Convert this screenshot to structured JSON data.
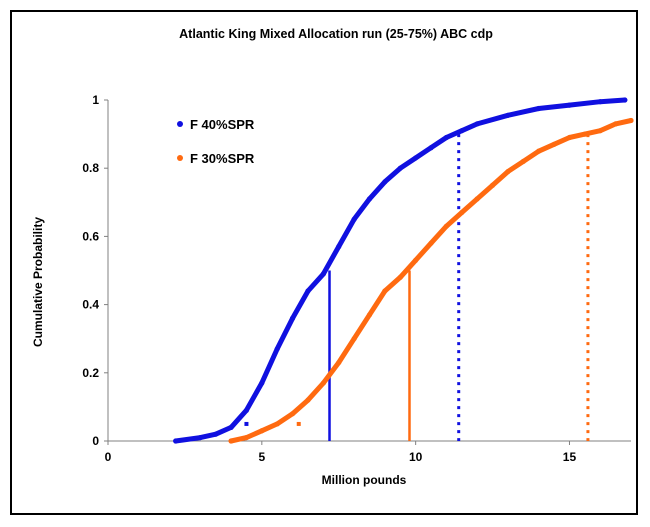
{
  "chart_data": {
    "type": "line",
    "title": "Atlantic King Mixed Allocation run (25-75%) ABC cdp",
    "xlabel": "Million pounds",
    "ylabel": "Cumulative Probability",
    "xlim": [
      0,
      17
    ],
    "ylim": [
      0,
      1
    ],
    "xticks": [
      0,
      5,
      10,
      15
    ],
    "yticks": [
      0,
      0.2,
      0.4,
      0.6,
      0.8,
      1
    ],
    "grid": false,
    "legend_position": "top-left",
    "series": [
      {
        "name": "F 40%SPR",
        "color": "#1010e0",
        "marker": "diamond",
        "x": [
          2.2,
          3.0,
          3.5,
          4.0,
          4.5,
          5.0,
          5.5,
          6.0,
          6.5,
          7.0,
          7.5,
          8.0,
          8.5,
          9.0,
          9.5,
          10.0,
          10.5,
          11.0,
          11.5,
          12.0,
          13.0,
          14.0,
          15.0,
          16.0,
          16.8
        ],
        "y": [
          0.0,
          0.01,
          0.02,
          0.04,
          0.09,
          0.17,
          0.27,
          0.36,
          0.44,
          0.49,
          0.57,
          0.65,
          0.71,
          0.76,
          0.8,
          0.83,
          0.86,
          0.89,
          0.91,
          0.93,
          0.955,
          0.975,
          0.985,
          0.995,
          1.0
        ]
      },
      {
        "name": "F 30%SPR",
        "color": "#ff6a10",
        "marker": "cross",
        "x": [
          4.0,
          4.5,
          5.0,
          5.5,
          6.0,
          6.5,
          7.0,
          7.5,
          8.0,
          8.5,
          9.0,
          9.5,
          10.0,
          10.5,
          11.0,
          11.5,
          12.0,
          12.5,
          13.0,
          13.5,
          14.0,
          14.5,
          15.0,
          15.5,
          16.0,
          16.5,
          17.0
        ],
        "y": [
          0.0,
          0.01,
          0.03,
          0.05,
          0.08,
          0.12,
          0.17,
          0.23,
          0.3,
          0.37,
          0.44,
          0.48,
          0.53,
          0.58,
          0.63,
          0.67,
          0.71,
          0.75,
          0.79,
          0.82,
          0.85,
          0.87,
          0.89,
          0.9,
          0.91,
          0.93,
          0.94
        ]
      }
    ],
    "reference_lines": [
      {
        "series": "F 40%SPR",
        "style": "solid",
        "x": 7.2,
        "y": 0.5
      },
      {
        "series": "F 40%SPR",
        "style": "dotted",
        "x": 11.4,
        "y": 0.9
      },
      {
        "series": "F 30%SPR",
        "style": "solid",
        "x": 9.8,
        "y": 0.5
      },
      {
        "series": "F 30%SPR",
        "style": "dotted",
        "x": 15.6,
        "y": 0.9
      }
    ],
    "extra_points": [
      {
        "series": "F 40%SPR",
        "x": 4.5,
        "y": 0.05
      },
      {
        "series": "F 30%SPR",
        "x": 6.2,
        "y": 0.05
      }
    ]
  }
}
